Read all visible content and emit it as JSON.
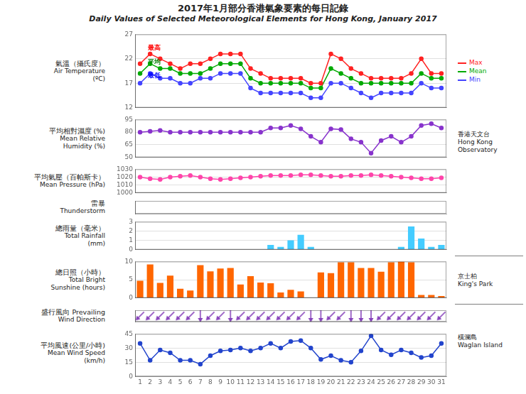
{
  "chart_data": [
    {
      "type": "line",
      "title": "2017年1月部分香港氣象要素的每日記錄",
      "subtitle": "Daily Values of Selected Meteorological Elements for Hong Kong, January 2017",
      "ylabel": [
        "氣溫（攝氏度）",
        "Air Temperature",
        "(ºC)"
      ],
      "x": [
        1,
        2,
        3,
        4,
        5,
        6,
        7,
        8,
        9,
        10,
        11,
        12,
        13,
        14,
        15,
        16,
        17,
        18,
        19,
        20,
        21,
        22,
        23,
        24,
        25,
        26,
        27,
        28,
        29,
        30,
        31
      ],
      "xlim": [
        0.5,
        31.5
      ],
      "ylim": [
        12,
        27
      ],
      "yticks": [
        12,
        17,
        22,
        27
      ],
      "grid": true,
      "tick_labels": "y",
      "legend": "right",
      "marker": "circle",
      "series": [
        {
          "name": "Max",
          "color": "#FF2222",
          "values": [
            21,
            23,
            22,
            21,
            20,
            21,
            21,
            22,
            23,
            23,
            23,
            20,
            19,
            18,
            18,
            18,
            18,
            17,
            17,
            23,
            22,
            20,
            19,
            18,
            18,
            18,
            18,
            19,
            22,
            19,
            19
          ]
        },
        {
          "name": "Mean",
          "color": "#00AA00",
          "values": [
            19,
            21,
            20,
            20,
            19,
            19,
            19,
            20,
            21,
            21,
            21,
            18,
            17,
            17,
            17,
            17,
            17,
            16,
            16,
            20,
            19,
            18,
            17,
            17,
            17,
            17,
            17,
            17,
            19,
            18,
            18
          ]
        },
        {
          "name": "Min",
          "color": "#4444FF",
          "values": [
            17,
            19,
            18,
            18,
            17,
            17,
            18,
            18,
            19,
            19,
            19,
            16,
            15,
            15,
            15,
            15,
            15,
            14,
            14,
            17,
            17,
            16,
            15,
            14,
            15,
            15,
            15,
            15,
            17,
            16,
            16
          ]
        }
      ],
      "annotations": [
        {
          "text": "最高",
          "x": 1.8,
          "y": 23.8,
          "color": "red"
        },
        {
          "text": "平均",
          "x": 1.8,
          "y": 21.0,
          "color": "green"
        },
        {
          "text": "最低",
          "x": 1.8,
          "y": 18.2,
          "color": "blue"
        },
        {
          "text": "香港天文台\nHong Kong\nObservatory"
        }
      ]
    },
    {
      "type": "line",
      "ylabel": [
        "平均相對濕度 (%)",
        "Mean Relative",
        "Humidity (%)"
      ],
      "x": [
        1,
        2,
        3,
        4,
        5,
        6,
        7,
        8,
        9,
        10,
        11,
        12,
        13,
        14,
        15,
        16,
        17,
        18,
        19,
        20,
        21,
        22,
        23,
        24,
        25,
        26,
        27,
        28,
        29,
        30,
        31
      ],
      "xlim": [
        0.5,
        31.5
      ],
      "ylim": [
        50,
        95
      ],
      "yticks": [
        50,
        65,
        80,
        95
      ],
      "grid": true,
      "tick_labels": "y",
      "marker": "circle",
      "color": "#8833CC",
      "values": [
        80,
        81,
        82,
        80,
        80,
        80,
        80,
        80,
        80,
        80,
        80,
        80,
        80,
        85,
        85,
        88,
        84,
        75,
        68,
        84,
        83,
        72,
        68,
        55,
        70,
        75,
        68,
        75,
        88,
        90,
        85
      ]
    },
    {
      "type": "line",
      "ylabel": [
        "平均氣壓（百帕斯卡）",
        "Mean Pressure (hPa)"
      ],
      "x": [
        1,
        2,
        3,
        4,
        5,
        6,
        7,
        8,
        9,
        10,
        11,
        12,
        13,
        14,
        15,
        16,
        17,
        18,
        19,
        20,
        21,
        22,
        23,
        24,
        25,
        26,
        27,
        28,
        29,
        30,
        31
      ],
      "xlim": [
        0.5,
        31.5
      ],
      "ylim": [
        1000,
        1030
      ],
      "yticks": [
        1000,
        1010,
        1020,
        1030
      ],
      "grid": true,
      "tick_labels": "y",
      "marker": "circle",
      "color": "#FF44AA",
      "values": [
        1020,
        1018,
        1017,
        1020,
        1021,
        1022,
        1020,
        1018,
        1017,
        1018,
        1019,
        1020,
        1021,
        1022,
        1022,
        1022,
        1023,
        1023,
        1022,
        1021,
        1021,
        1022,
        1022,
        1023,
        1022,
        1021,
        1020,
        1019,
        1018,
        1018,
        1019
      ]
    },
    {
      "type": "line",
      "ylabel": [
        "雷暴",
        "Thunderstorm"
      ],
      "xlim": [
        0.5,
        31.5
      ],
      "ylim": [
        0,
        1
      ],
      "grid": false,
      "tick_labels": false
    },
    {
      "type": "bar",
      "ylabel": [
        "總雨量（毫米）",
        "Total Rainfall",
        "(mm)"
      ],
      "x": [
        1,
        2,
        3,
        4,
        5,
        6,
        7,
        8,
        9,
        10,
        11,
        12,
        13,
        14,
        15,
        16,
        17,
        18,
        19,
        20,
        21,
        22,
        23,
        24,
        25,
        26,
        27,
        28,
        29,
        30,
        31
      ],
      "xlim": [
        0.5,
        31.5
      ],
      "ylim": [
        0,
        3
      ],
      "yticks": [
        0,
        1,
        2,
        3
      ],
      "grid": true,
      "tick_labels": "y",
      "color": "#44CCFF",
      "values": [
        0,
        0,
        0,
        0,
        0,
        0,
        0,
        0,
        0,
        0,
        0,
        0,
        0,
        0.5,
        0.3,
        1.0,
        1.6,
        0.3,
        0,
        0,
        0,
        0,
        0,
        0,
        0,
        0,
        0.3,
        2.5,
        1.2,
        0.3,
        0.5
      ]
    },
    {
      "type": "bar",
      "ylabel": [
        "總日照（小時）",
        "Total Bright",
        "Sunshine (hours)"
      ],
      "x": [
        1,
        2,
        3,
        4,
        5,
        6,
        7,
        8,
        9,
        10,
        11,
        12,
        13,
        14,
        15,
        16,
        17,
        18,
        19,
        20,
        21,
        22,
        23,
        24,
        25,
        26,
        27,
        28,
        29,
        30,
        31
      ],
      "xlim": [
        0.5,
        31.5
      ],
      "ylim": [
        0,
        10
      ],
      "yticks": [
        0,
        5,
        10
      ],
      "grid": true,
      "tick_labels": "y",
      "color": "#FF6600",
      "values": [
        4.7,
        9.2,
        4.1,
        6.1,
        2.5,
        2.0,
        9.0,
        7.3,
        8.1,
        8.2,
        3.7,
        6.0,
        4.2,
        4.0,
        1.5,
        2.2,
        1.8,
        0,
        7.0,
        6.8,
        9.8,
        9.8,
        8.2,
        8.2,
        7.2,
        9.8,
        10.0,
        9.8,
        0.8,
        0.8,
        0.5
      ],
      "annotations": [
        {
          "text": "京士柏\nKing's Park"
        }
      ]
    },
    {
      "type": "arrow",
      "ylabel": [
        "盛行風向 Prevailing",
        "Wind Direction"
      ],
      "x": [
        1,
        2,
        3,
        4,
        5,
        6,
        7,
        8,
        9,
        10,
        11,
        12,
        13,
        14,
        15,
        16,
        17,
        18,
        19,
        20,
        21,
        22,
        23,
        24,
        25,
        26,
        27,
        28,
        29,
        30,
        31
      ],
      "xlim": [
        0.5,
        31.5
      ],
      "ylim": [
        0,
        1
      ],
      "grid": false,
      "tick_labels": false,
      "color": "#8844BB",
      "values": [
        "NE",
        "NE",
        "NE",
        "NE",
        "NE",
        "NE",
        "N",
        "NE",
        "NE",
        "N",
        "NE",
        "NE",
        "NE",
        "NE",
        "NE",
        "NE",
        "NE",
        "N",
        "N",
        "NE",
        "NE",
        "N",
        "N",
        "N",
        "NE",
        "NE",
        "NE",
        "NE",
        "NE",
        "NE",
        "NE"
      ],
      "annotations": [
        {
          "text": "橫瀾島\nWaglan Island"
        }
      ]
    },
    {
      "type": "line",
      "ylabel": [
        "平均風速(公里/小時)",
        "Mean Wind Speed",
        "(km/h)"
      ],
      "x": [
        1,
        2,
        3,
        4,
        5,
        6,
        7,
        8,
        9,
        10,
        11,
        12,
        13,
        14,
        15,
        16,
        17,
        18,
        19,
        20,
        21,
        22,
        23,
        24,
        25,
        26,
        27,
        28,
        29,
        30,
        31
      ],
      "xlim": [
        0.5,
        31.5
      ],
      "xticks": [
        1,
        2,
        3,
        4,
        5,
        6,
        7,
        8,
        9,
        10,
        11,
        12,
        13,
        14,
        15,
        16,
        17,
        18,
        19,
        20,
        21,
        22,
        23,
        24,
        25,
        26,
        27,
        28,
        29,
        30,
        31
      ],
      "ylim": [
        0,
        45
      ],
      "yticks": [
        0,
        15,
        30,
        45
      ],
      "grid": true,
      "marker": "circle",
      "color": "#2244CC",
      "values": [
        35,
        17,
        28,
        25,
        17,
        17,
        13,
        22,
        27,
        28,
        30,
        27,
        30,
        35,
        30,
        37,
        38,
        30,
        18,
        22,
        17,
        15,
        27,
        43,
        28,
        23,
        28,
        25,
        20,
        22,
        35
      ]
    }
  ]
}
